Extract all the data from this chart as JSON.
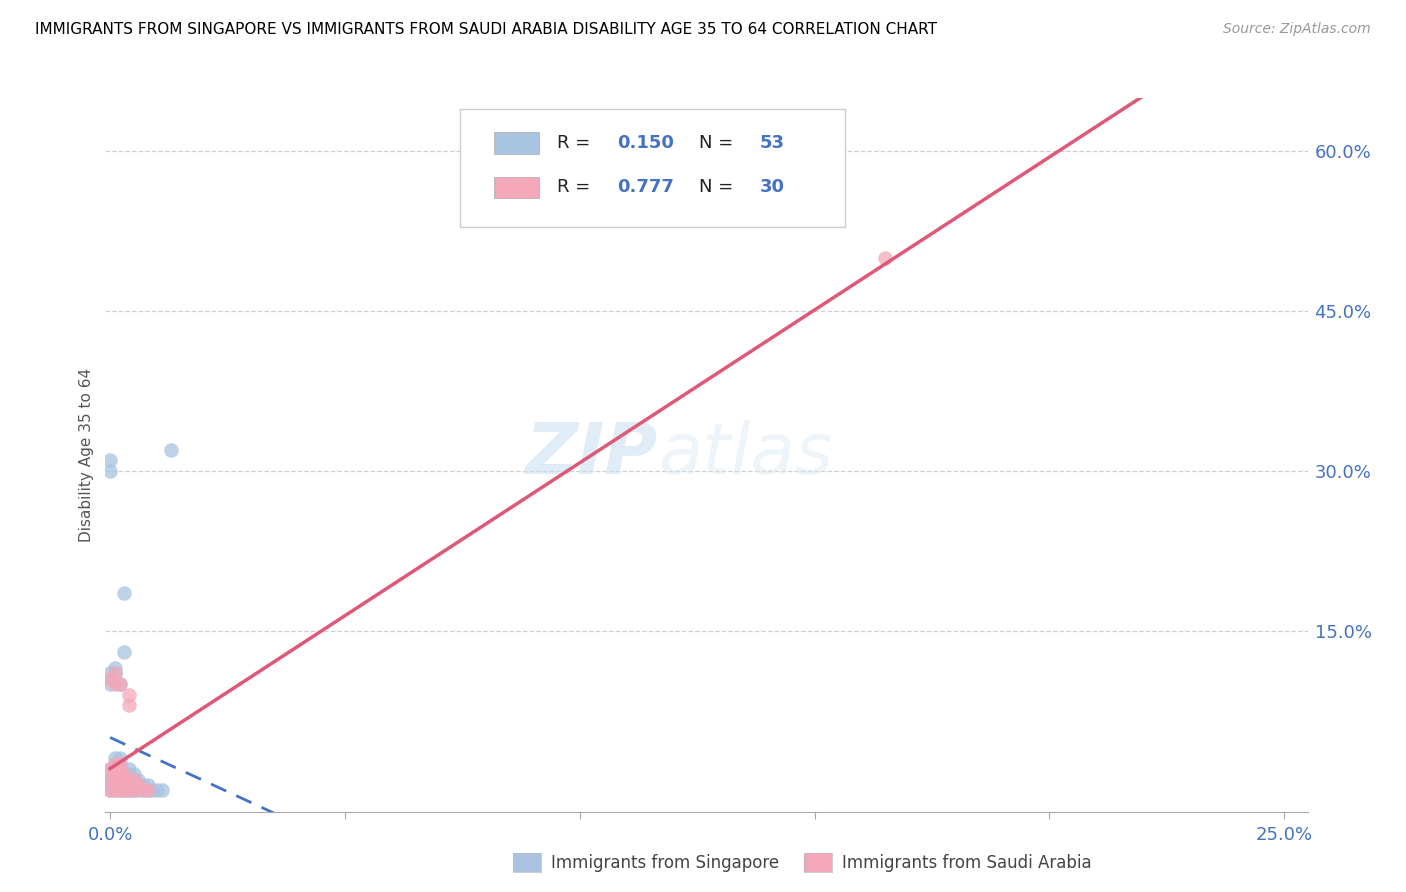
{
  "title": "IMMIGRANTS FROM SINGAPORE VS IMMIGRANTS FROM SAUDI ARABIA DISABILITY AGE 35 TO 64 CORRELATION CHART",
  "source": "Source: ZipAtlas.com",
  "ylabel": "Disability Age 35 to 64",
  "x_min": -0.001,
  "x_max": 0.255,
  "y_min": -0.02,
  "y_max": 0.65,
  "singapore_color": "#a8c4e0",
  "singapore_edge_color": "#7aaacf",
  "saudi_color": "#f4a7b9",
  "saudi_edge_color": "#e080a0",
  "singapore_line_color": "#4472c4",
  "saudi_line_color": "#e05878",
  "R_singapore": 0.15,
  "N_singapore": 53,
  "R_saudi": 0.777,
  "N_saudi": 30,
  "watermark": "ZIPatlas",
  "legend_label_singapore": "Immigrants from Singapore",
  "legend_label_saudi": "Immigrants from Saudi Arabia",
  "singapore_scatter": [
    [
      0.0,
      0.0
    ],
    [
      0.0,
      0.005
    ],
    [
      0.0,
      0.01
    ],
    [
      0.0,
      0.015
    ],
    [
      0.0,
      0.02
    ],
    [
      0.0,
      0.1
    ],
    [
      0.0,
      0.105
    ],
    [
      0.0,
      0.11
    ],
    [
      0.001,
      0.0
    ],
    [
      0.001,
      0.005
    ],
    [
      0.001,
      0.01
    ],
    [
      0.001,
      0.015
    ],
    [
      0.001,
      0.02
    ],
    [
      0.001,
      0.025
    ],
    [
      0.001,
      0.03
    ],
    [
      0.001,
      0.11
    ],
    [
      0.001,
      0.115
    ],
    [
      0.002,
      0.0
    ],
    [
      0.002,
      0.005
    ],
    [
      0.002,
      0.01
    ],
    [
      0.002,
      0.015
    ],
    [
      0.002,
      0.02
    ],
    [
      0.002,
      0.025
    ],
    [
      0.002,
      0.03
    ],
    [
      0.002,
      0.1
    ],
    [
      0.003,
      0.0
    ],
    [
      0.003,
      0.005
    ],
    [
      0.003,
      0.01
    ],
    [
      0.003,
      0.015
    ],
    [
      0.003,
      0.13
    ],
    [
      0.003,
      0.185
    ],
    [
      0.004,
      0.0
    ],
    [
      0.004,
      0.005
    ],
    [
      0.004,
      0.01
    ],
    [
      0.004,
      0.015
    ],
    [
      0.004,
      0.02
    ],
    [
      0.005,
      0.0
    ],
    [
      0.005,
      0.005
    ],
    [
      0.005,
      0.01
    ],
    [
      0.005,
      0.015
    ],
    [
      0.006,
      0.0
    ],
    [
      0.006,
      0.005
    ],
    [
      0.006,
      0.01
    ],
    [
      0.007,
      0.0
    ],
    [
      0.007,
      0.005
    ],
    [
      0.008,
      0.0
    ],
    [
      0.008,
      0.005
    ],
    [
      0.009,
      0.0
    ],
    [
      0.01,
      0.0
    ],
    [
      0.011,
      0.0
    ],
    [
      0.0,
      0.3
    ],
    [
      0.013,
      0.32
    ],
    [
      0.0,
      0.31
    ]
  ],
  "saudi_scatter": [
    [
      0.0,
      0.0
    ],
    [
      0.0,
      0.01
    ],
    [
      0.0,
      0.02
    ],
    [
      0.0,
      0.105
    ],
    [
      0.001,
      0.0
    ],
    [
      0.001,
      0.01
    ],
    [
      0.001,
      0.015
    ],
    [
      0.001,
      0.02
    ],
    [
      0.001,
      0.025
    ],
    [
      0.001,
      0.1
    ],
    [
      0.001,
      0.11
    ],
    [
      0.002,
      0.0
    ],
    [
      0.002,
      0.01
    ],
    [
      0.002,
      0.015
    ],
    [
      0.002,
      0.02
    ],
    [
      0.002,
      0.025
    ],
    [
      0.002,
      0.1
    ],
    [
      0.003,
      0.0
    ],
    [
      0.003,
      0.01
    ],
    [
      0.003,
      0.015
    ],
    [
      0.004,
      0.0
    ],
    [
      0.004,
      0.01
    ],
    [
      0.004,
      0.08
    ],
    [
      0.004,
      0.09
    ],
    [
      0.005,
      0.0
    ],
    [
      0.005,
      0.01
    ],
    [
      0.006,
      0.005
    ],
    [
      0.007,
      0.0
    ],
    [
      0.008,
      0.0
    ],
    [
      0.165,
      0.5
    ]
  ]
}
